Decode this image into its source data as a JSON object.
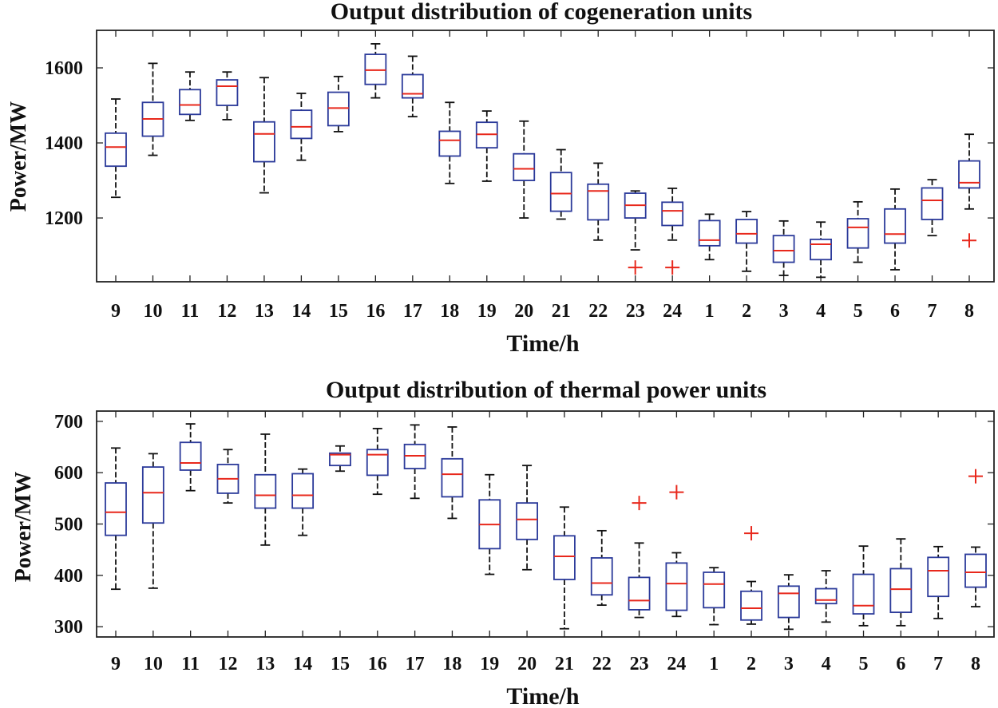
{
  "chart_data": [
    {
      "type": "boxplot",
      "title": "Output distribution of cogeneration units",
      "xlabel": "Time/h",
      "ylabel": "Power/MW",
      "ylim": [
        1030,
        1700
      ],
      "yticks": [
        1200,
        1400,
        1600
      ],
      "categories": [
        "9",
        "10",
        "11",
        "12",
        "13",
        "14",
        "15",
        "16",
        "17",
        "18",
        "19",
        "20",
        "21",
        "22",
        "23",
        "24",
        "1",
        "2",
        "3",
        "4",
        "5",
        "6",
        "7",
        "8"
      ],
      "boxes": [
        {
          "min": 1255,
          "q1": 1338,
          "median": 1389,
          "q3": 1426,
          "max": 1517,
          "outliers": []
        },
        {
          "min": 1367,
          "q1": 1418,
          "median": 1464,
          "q3": 1508,
          "max": 1612,
          "outliers": []
        },
        {
          "min": 1460,
          "q1": 1476,
          "median": 1501,
          "q3": 1542,
          "max": 1589,
          "outliers": []
        },
        {
          "min": 1462,
          "q1": 1500,
          "median": 1551,
          "q3": 1568,
          "max": 1589,
          "outliers": []
        },
        {
          "min": 1267,
          "q1": 1350,
          "median": 1424,
          "q3": 1456,
          "max": 1574,
          "outliers": []
        },
        {
          "min": 1354,
          "q1": 1412,
          "median": 1443,
          "q3": 1487,
          "max": 1532,
          "outliers": []
        },
        {
          "min": 1430,
          "q1": 1446,
          "median": 1493,
          "q3": 1535,
          "max": 1577,
          "outliers": []
        },
        {
          "min": 1520,
          "q1": 1556,
          "median": 1594,
          "q3": 1636,
          "max": 1664,
          "outliers": []
        },
        {
          "min": 1470,
          "q1": 1520,
          "median": 1531,
          "q3": 1582,
          "max": 1631,
          "outliers": []
        },
        {
          "min": 1292,
          "q1": 1365,
          "median": 1407,
          "q3": 1431,
          "max": 1508,
          "outliers": []
        },
        {
          "min": 1298,
          "q1": 1387,
          "median": 1423,
          "q3": 1455,
          "max": 1485,
          "outliers": []
        },
        {
          "min": 1200,
          "q1": 1300,
          "median": 1331,
          "q3": 1371,
          "max": 1458,
          "outliers": []
        },
        {
          "min": 1197,
          "q1": 1218,
          "median": 1265,
          "q3": 1321,
          "max": 1382,
          "outliers": []
        },
        {
          "min": 1141,
          "q1": 1195,
          "median": 1272,
          "q3": 1290,
          "max": 1346,
          "outliers": []
        },
        {
          "min": 1115,
          "q1": 1200,
          "median": 1234,
          "q3": 1266,
          "max": 1272,
          "outliers": [
            1068
          ]
        },
        {
          "min": 1141,
          "q1": 1180,
          "median": 1219,
          "q3": 1242,
          "max": 1279,
          "outliers": [
            1068
          ]
        },
        {
          "min": 1089,
          "q1": 1126,
          "median": 1141,
          "q3": 1193,
          "max": 1210,
          "outliers": []
        },
        {
          "min": 1058,
          "q1": 1133,
          "median": 1158,
          "q3": 1196,
          "max": 1217,
          "outliers": []
        },
        {
          "min": 1047,
          "q1": 1082,
          "median": 1113,
          "q3": 1153,
          "max": 1192,
          "outliers": []
        },
        {
          "min": 1042,
          "q1": 1089,
          "median": 1130,
          "q3": 1143,
          "max": 1189,
          "outliers": []
        },
        {
          "min": 1082,
          "q1": 1120,
          "median": 1175,
          "q3": 1198,
          "max": 1243,
          "outliers": []
        },
        {
          "min": 1062,
          "q1": 1133,
          "median": 1157,
          "q3": 1224,
          "max": 1277,
          "outliers": []
        },
        {
          "min": 1153,
          "q1": 1196,
          "median": 1247,
          "q3": 1280,
          "max": 1302,
          "outliers": []
        },
        {
          "min": 1224,
          "q1": 1280,
          "median": 1294,
          "q3": 1352,
          "max": 1423,
          "outliers": [
            1140
          ]
        }
      ]
    },
    {
      "type": "boxplot",
      "title": "Output distribution of thermal power units",
      "xlabel": "Time/h",
      "ylabel": "Power/MW",
      "ylim": [
        280,
        720
      ],
      "yticks": [
        300,
        400,
        500,
        600,
        700
      ],
      "categories": [
        "9",
        "10",
        "11",
        "12",
        "13",
        "14",
        "15",
        "16",
        "17",
        "18",
        "19",
        "20",
        "21",
        "22",
        "23",
        "24",
        "1",
        "2",
        "3",
        "4",
        "5",
        "6",
        "7",
        "8"
      ],
      "boxes": [
        {
          "min": 373,
          "q1": 478,
          "median": 523,
          "q3": 580,
          "max": 648,
          "outliers": []
        },
        {
          "min": 375,
          "q1": 502,
          "median": 561,
          "q3": 611,
          "max": 637,
          "outliers": []
        },
        {
          "min": 565,
          "q1": 605,
          "median": 619,
          "q3": 659,
          "max": 695,
          "outliers": []
        },
        {
          "min": 541,
          "q1": 560,
          "median": 588,
          "q3": 616,
          "max": 645,
          "outliers": []
        },
        {
          "min": 459,
          "q1": 531,
          "median": 556,
          "q3": 596,
          "max": 675,
          "outliers": []
        },
        {
          "min": 478,
          "q1": 531,
          "median": 556,
          "q3": 598,
          "max": 607,
          "outliers": []
        },
        {
          "min": 603,
          "q1": 614,
          "median": 635,
          "q3": 638,
          "max": 652,
          "outliers": []
        },
        {
          "min": 558,
          "q1": 595,
          "median": 635,
          "q3": 645,
          "max": 686,
          "outliers": []
        },
        {
          "min": 550,
          "q1": 608,
          "median": 633,
          "q3": 655,
          "max": 693,
          "outliers": []
        },
        {
          "min": 511,
          "q1": 553,
          "median": 597,
          "q3": 627,
          "max": 689,
          "outliers": []
        },
        {
          "min": 402,
          "q1": 452,
          "median": 499,
          "q3": 547,
          "max": 596,
          "outliers": []
        },
        {
          "min": 411,
          "q1": 470,
          "median": 509,
          "q3": 541,
          "max": 614,
          "outliers": []
        },
        {
          "min": 296,
          "q1": 392,
          "median": 437,
          "q3": 477,
          "max": 533,
          "outliers": []
        },
        {
          "min": 342,
          "q1": 362,
          "median": 385,
          "q3": 434,
          "max": 487,
          "outliers": []
        },
        {
          "min": 318,
          "q1": 333,
          "median": 351,
          "q3": 396,
          "max": 463,
          "outliers": [
            541
          ]
        },
        {
          "min": 320,
          "q1": 332,
          "median": 384,
          "q3": 424,
          "max": 444,
          "outliers": [
            562
          ]
        },
        {
          "min": 304,
          "q1": 337,
          "median": 383,
          "q3": 406,
          "max": 415,
          "outliers": []
        },
        {
          "min": 305,
          "q1": 313,
          "median": 336,
          "q3": 369,
          "max": 388,
          "outliers": [
            482
          ]
        },
        {
          "min": 295,
          "q1": 318,
          "median": 365,
          "q3": 379,
          "max": 401,
          "outliers": []
        },
        {
          "min": 309,
          "q1": 345,
          "median": 352,
          "q3": 374,
          "max": 409,
          "outliers": []
        },
        {
          "min": 302,
          "q1": 325,
          "median": 341,
          "q3": 402,
          "max": 457,
          "outliers": []
        },
        {
          "min": 302,
          "q1": 328,
          "median": 373,
          "q3": 413,
          "max": 471,
          "outliers": []
        },
        {
          "min": 316,
          "q1": 359,
          "median": 409,
          "q3": 435,
          "max": 456,
          "outliers": []
        },
        {
          "min": 339,
          "q1": 377,
          "median": 406,
          "q3": 441,
          "max": 455,
          "outliers": [
            593
          ]
        }
      ]
    }
  ]
}
